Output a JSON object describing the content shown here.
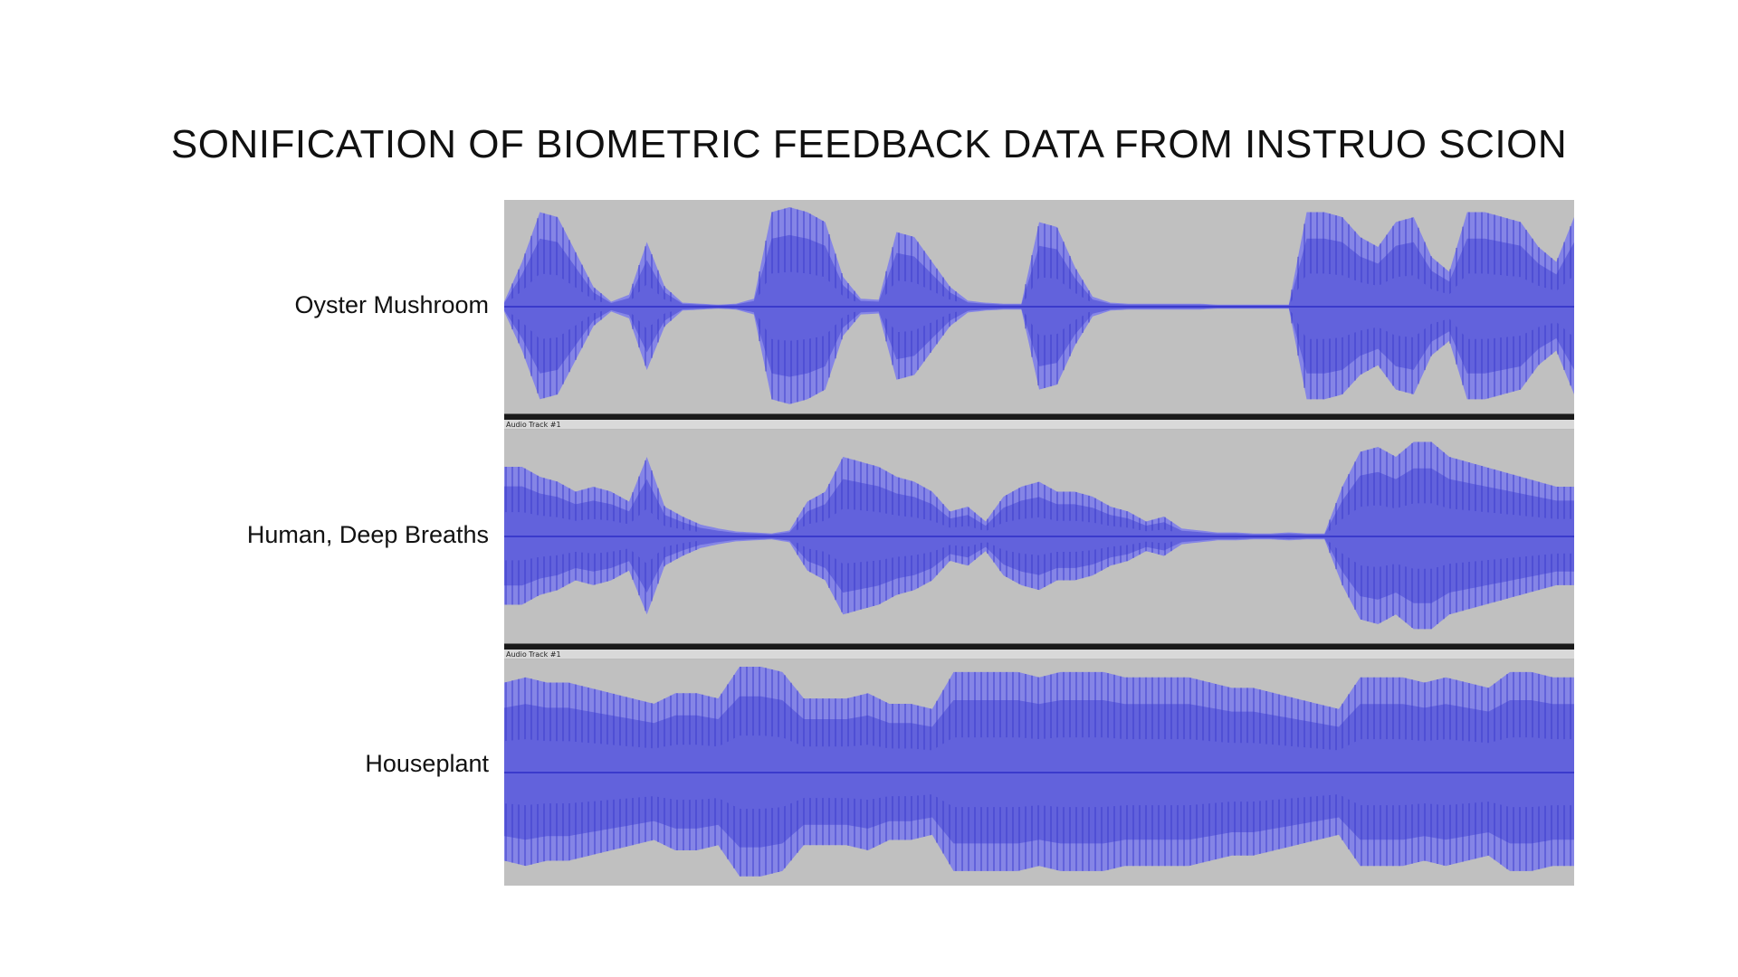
{
  "title": "SONIFICATION OF BIOMETRIC FEEDBACK DATA FROM INSTRUO SCION",
  "colors": {
    "lane_bg": "#c0c0c0",
    "wave_light": "#8585e6",
    "wave_mid": "#6262dc",
    "wave_dark": "#3a3acc"
  },
  "tracks": [
    {
      "label": "Oyster Mushroom",
      "header": "",
      "envelope": [
        0.05,
        0.45,
        0.95,
        0.9,
        0.55,
        0.2,
        0.05,
        0.12,
        0.65,
        0.2,
        0.04,
        0.03,
        0.02,
        0.03,
        0.08,
        0.95,
        1.0,
        0.95,
        0.85,
        0.3,
        0.08,
        0.07,
        0.75,
        0.7,
        0.45,
        0.2,
        0.06,
        0.04,
        0.03,
        0.03,
        0.85,
        0.8,
        0.4,
        0.1,
        0.04,
        0.03,
        0.03,
        0.03,
        0.03,
        0.03,
        0.02,
        0.02,
        0.02,
        0.02,
        0.02,
        0.95,
        0.95,
        0.9,
        0.7,
        0.6,
        0.85,
        0.9,
        0.5,
        0.35,
        0.95,
        0.95,
        0.9,
        0.85,
        0.6,
        0.45,
        0.9
      ]
    },
    {
      "label": "Human, Deep Breaths",
      "header": "Audio Track #1",
      "envelope": [
        0.7,
        0.7,
        0.6,
        0.55,
        0.45,
        0.5,
        0.45,
        0.35,
        0.8,
        0.3,
        0.2,
        0.12,
        0.08,
        0.05,
        0.04,
        0.03,
        0.06,
        0.35,
        0.45,
        0.8,
        0.75,
        0.7,
        0.6,
        0.55,
        0.45,
        0.25,
        0.3,
        0.15,
        0.4,
        0.5,
        0.55,
        0.45,
        0.45,
        0.4,
        0.3,
        0.25,
        0.15,
        0.2,
        0.08,
        0.06,
        0.04,
        0.04,
        0.03,
        0.03,
        0.04,
        0.03,
        0.03,
        0.5,
        0.85,
        0.9,
        0.8,
        0.95,
        0.95,
        0.8,
        0.75,
        0.7,
        0.65,
        0.6,
        0.55,
        0.5,
        0.5
      ]
    },
    {
      "label": "Houseplant",
      "header": "Audio Track #1",
      "envelope": [
        0.85,
        0.9,
        0.85,
        0.85,
        0.8,
        0.75,
        0.7,
        0.65,
        0.75,
        0.75,
        0.7,
        1.0,
        1.0,
        0.95,
        0.7,
        0.7,
        0.7,
        0.75,
        0.65,
        0.65,
        0.6,
        0.95,
        0.95,
        0.95,
        0.95,
        0.9,
        0.95,
        0.95,
        0.95,
        0.9,
        0.9,
        0.9,
        0.9,
        0.85,
        0.8,
        0.8,
        0.75,
        0.7,
        0.65,
        0.6,
        0.9,
        0.9,
        0.9,
        0.85,
        0.9,
        0.85,
        0.8,
        0.95,
        0.95,
        0.9,
        0.9
      ]
    }
  ]
}
